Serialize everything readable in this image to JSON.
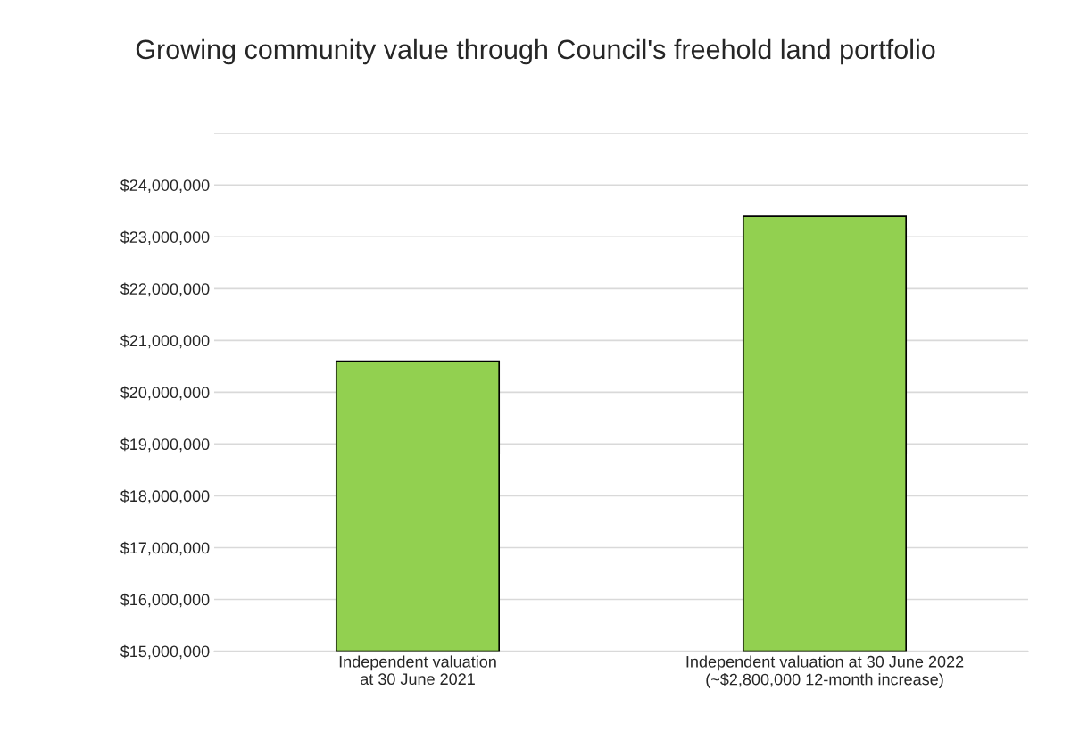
{
  "chart_data": {
    "type": "bar",
    "title": "Growing community value through Council's freehold land portfolio",
    "categories": [
      "Independent valuation at 30 June 2021",
      "Independent valuation at 30 June 2022 (~$2,800,000 12-month increase)"
    ],
    "values": [
      20600000,
      23400000
    ],
    "color": "#92d050",
    "ylim": [
      15000000,
      25000000
    ],
    "yticks": [
      {
        "value": 15000000,
        "label": "$15,000,000"
      },
      {
        "value": 16000000,
        "label": "$16,000,000"
      },
      {
        "value": 17000000,
        "label": "$17,000,000"
      },
      {
        "value": 18000000,
        "label": "$18,000,000"
      },
      {
        "value": 19000000,
        "label": "$19,000,000"
      },
      {
        "value": 20000000,
        "label": "$20,000,000"
      },
      {
        "value": 21000000,
        "label": "$21,000,000"
      },
      {
        "value": 22000000,
        "label": "$22,000,000"
      },
      {
        "value": 23000000,
        "label": "$23,000,000"
      },
      {
        "value": 24000000,
        "label": "$24,000,000"
      },
      {
        "value": 25000000,
        "label": null
      }
    ],
    "grid": "y"
  }
}
